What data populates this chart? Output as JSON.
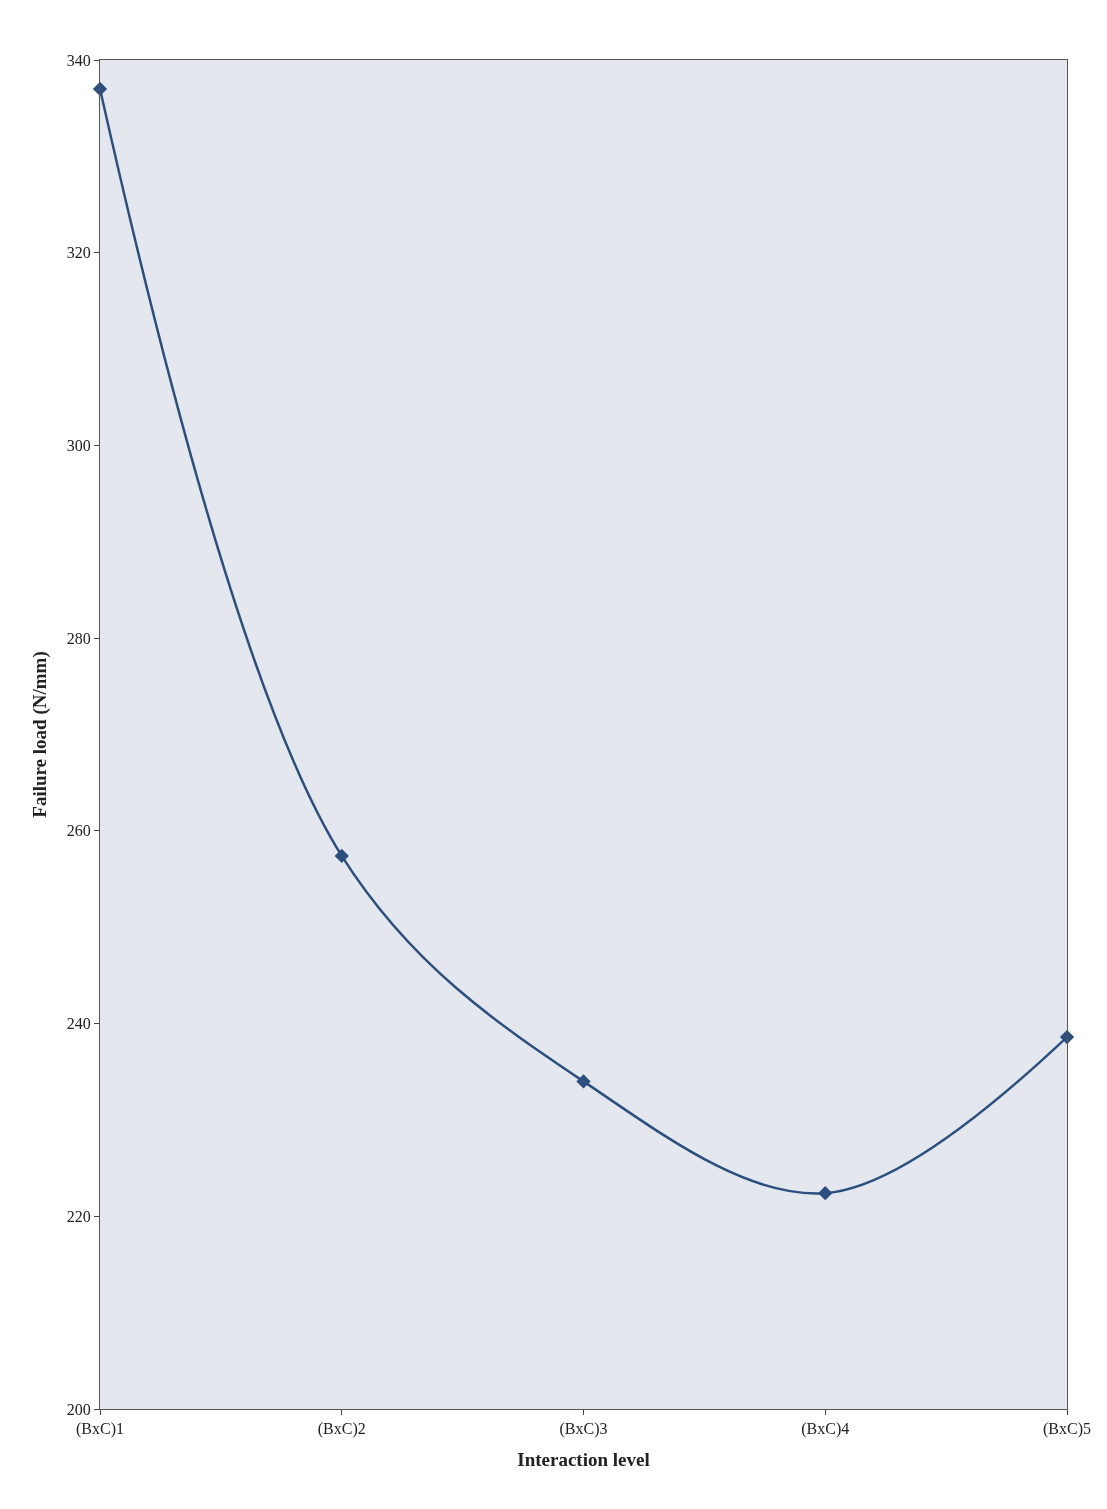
{
  "chart_data": {
    "type": "line",
    "xlabel": "Interaction level",
    "ylabel": "Failure load (N/mm)",
    "categories": [
      "(BxC)1",
      "(BxC)2",
      "(BxC)3",
      "(BxC)4",
      "(BxC)5"
    ],
    "series": [
      {
        "color": "#2b4f7e",
        "values": [
          337,
          257.4,
          234,
          222.4,
          238.6
        ]
      }
    ],
    "ylim": [
      200,
      340
    ],
    "yticks": [
      200,
      220,
      240,
      260,
      280,
      300,
      320,
      340
    ],
    "grid": false,
    "legend": false,
    "marker": "diamond",
    "line_style": "solid"
  }
}
